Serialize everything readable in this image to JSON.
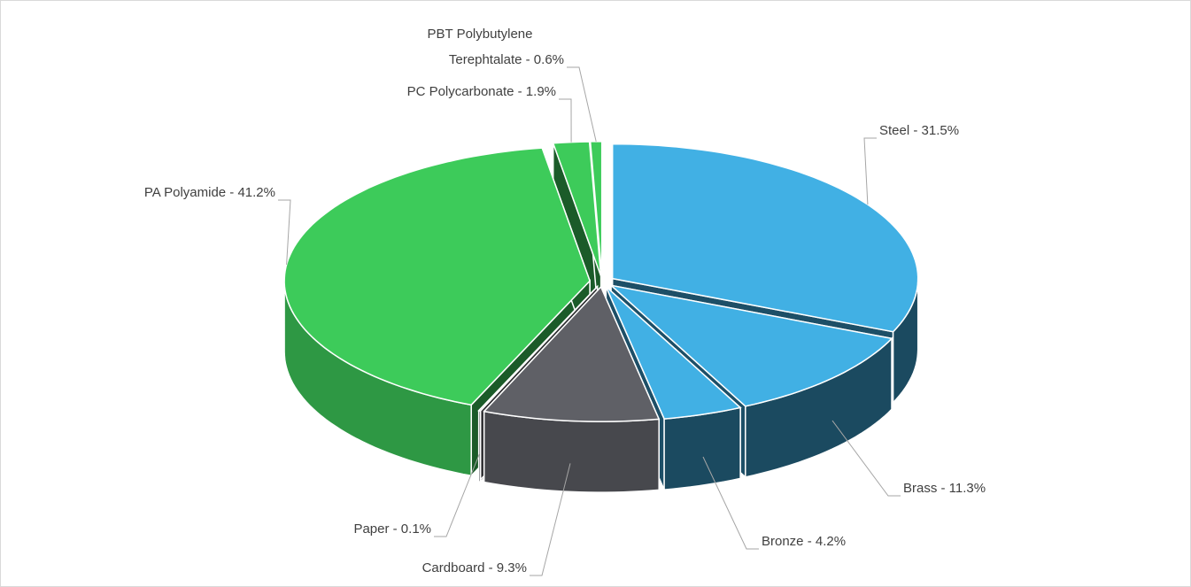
{
  "chart_data": {
    "type": "pie3d",
    "categories": [
      "Steel - 31.5%",
      "Brass - 11.3%",
      "Bronze - 4.2%",
      "Cardboard - 9.3%",
      "Paper - 0.1%",
      "PA Polyamide - 41.2%",
      "PC Polycarbonate - 1.9%",
      "PBT Polybutylene\nTerephtalate - 0.6%"
    ],
    "values": [
      31.5,
      11.3,
      4.2,
      9.3,
      0.1,
      41.2,
      1.9,
      0.6
    ],
    "colors": [
      "#41b0e4",
      "#41b0e4",
      "#41b0e4",
      "#5f6066",
      "#5f6066",
      "#3dcb5a",
      "#3dcb5a",
      "#3dcb5a"
    ]
  }
}
